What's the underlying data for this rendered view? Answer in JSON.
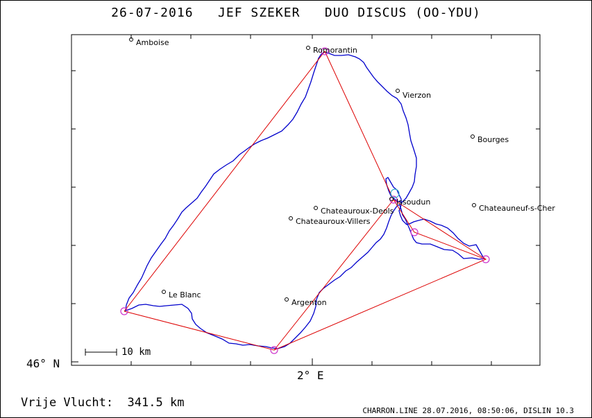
{
  "title": "26-07-2016   JEF SZEKER   DUO DISCUS (OO-YDU)",
  "axes": {
    "lat_label": "46° N",
    "lon_label": "2° E"
  },
  "scale_bar": {
    "label": "10 km"
  },
  "flight": {
    "distance_label": "Vrije Vlucht:",
    "distance_value": "341.5 km"
  },
  "footer": "CHARRON.LINE 28.07.2016, 08:50:06, DISLIN 10.3",
  "colors": {
    "track": "#0000cc",
    "task_line": "#dd0000",
    "turnpoint": "#cc33cc",
    "start": "#33aacc"
  },
  "towns": [
    {
      "name": "Amboise"
    },
    {
      "name": "Romorantin"
    },
    {
      "name": "Vierzon"
    },
    {
      "name": "Bourges"
    },
    {
      "name": "Issoudun"
    },
    {
      "name": "Chateauroux-Deols"
    },
    {
      "name": "Chateauroux-Villers"
    },
    {
      "name": "Chateauneuf-s-Cher"
    },
    {
      "name": "Le Blanc"
    },
    {
      "name": "Argenton"
    }
  ]
}
